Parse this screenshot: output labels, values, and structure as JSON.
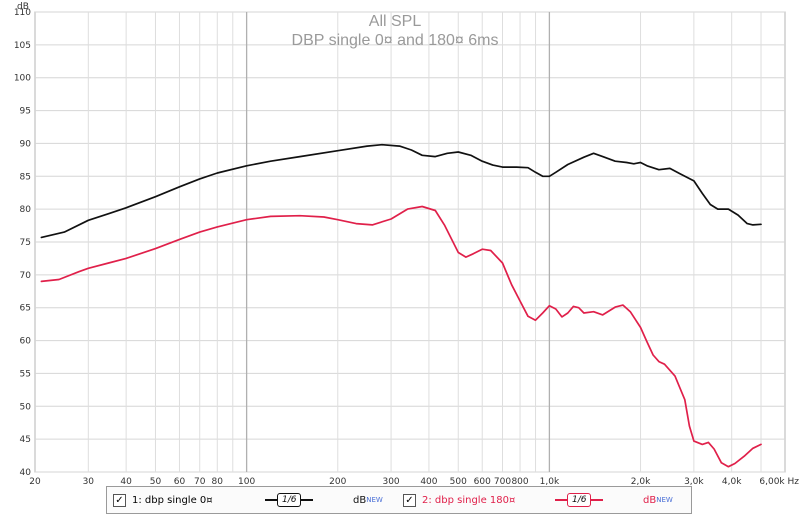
{
  "chart_data": {
    "type": "line",
    "title": "All SPL",
    "subtitle": "DBP single 0¤ and 180¤ 6ms",
    "ylabel": "dB",
    "xlabel": "",
    "x_scale": "log",
    "xlim": [
      20,
      6000
    ],
    "ylim": [
      40,
      110
    ],
    "y_ticks": [
      "40",
      "45",
      "50",
      "55",
      "60",
      "65",
      "70",
      "75",
      "80",
      "85",
      "90",
      "95",
      "100",
      "105",
      "110"
    ],
    "x_ticks": [
      {
        "v": 20,
        "l": "20"
      },
      {
        "v": 30,
        "l": "30"
      },
      {
        "v": 40,
        "l": "40"
      },
      {
        "v": 50,
        "l": "50"
      },
      {
        "v": 60,
        "l": "60"
      },
      {
        "v": 70,
        "l": "70"
      },
      {
        "v": 80,
        "l": "80"
      },
      {
        "v": 100,
        "l": "100"
      },
      {
        "v": 200,
        "l": "200"
      },
      {
        "v": 300,
        "l": "300"
      },
      {
        "v": 400,
        "l": "400"
      },
      {
        "v": 500,
        "l": "500"
      },
      {
        "v": 600,
        "l": "600"
      },
      {
        "v": 700,
        "l": "700"
      },
      {
        "v": 800,
        "l": "800"
      },
      {
        "v": 1000,
        "l": "1,0k"
      },
      {
        "v": 2000,
        "l": "2,0k"
      },
      {
        "v": 3000,
        "l": "3,0k"
      },
      {
        "v": 4000,
        "l": "4,0k"
      },
      {
        "v": 6000,
        "l": "6,00k Hz"
      }
    ],
    "grid": true,
    "legend_position": "bottom",
    "series": [
      {
        "name": "1: dbp single 0¤",
        "color": "#111111",
        "points": [
          [
            21,
            75.7
          ],
          [
            25,
            76.5
          ],
          [
            30,
            78.3
          ],
          [
            35,
            79.3
          ],
          [
            40,
            80.2
          ],
          [
            50,
            81.9
          ],
          [
            60,
            83.4
          ],
          [
            70,
            84.6
          ],
          [
            80,
            85.5
          ],
          [
            100,
            86.6
          ],
          [
            120,
            87.3
          ],
          [
            150,
            88.0
          ],
          [
            200,
            88.9
          ],
          [
            250,
            89.6
          ],
          [
            280,
            89.8
          ],
          [
            320,
            89.6
          ],
          [
            350,
            89.0
          ],
          [
            380,
            88.2
          ],
          [
            420,
            88.0
          ],
          [
            460,
            88.5
          ],
          [
            500,
            88.7
          ],
          [
            550,
            88.2
          ],
          [
            600,
            87.3
          ],
          [
            650,
            86.7
          ],
          [
            700,
            86.4
          ],
          [
            780,
            86.4
          ],
          [
            850,
            86.3
          ],
          [
            900,
            85.6
          ],
          [
            950,
            85.0
          ],
          [
            1000,
            85.0
          ],
          [
            1050,
            85.6
          ],
          [
            1150,
            86.8
          ],
          [
            1300,
            87.9
          ],
          [
            1400,
            88.5
          ],
          [
            1500,
            88.0
          ],
          [
            1650,
            87.3
          ],
          [
            1800,
            87.1
          ],
          [
            1900,
            86.9
          ],
          [
            2000,
            87.1
          ],
          [
            2100,
            86.6
          ],
          [
            2300,
            86.0
          ],
          [
            2500,
            86.2
          ],
          [
            2700,
            85.4
          ],
          [
            3000,
            84.3
          ],
          [
            3200,
            82.4
          ],
          [
            3400,
            80.7
          ],
          [
            3600,
            80.0
          ],
          [
            3900,
            80.0
          ],
          [
            4200,
            79.1
          ],
          [
            4500,
            77.8
          ],
          [
            4700,
            77.6
          ],
          [
            5000,
            77.7
          ]
        ]
      },
      {
        "name": "2: dbp single 180¤",
        "color": "#e0204a",
        "points": [
          [
            21,
            69.0
          ],
          [
            24,
            69.3
          ],
          [
            28,
            70.5
          ],
          [
            30,
            71.0
          ],
          [
            35,
            71.8
          ],
          [
            40,
            72.5
          ],
          [
            50,
            74.0
          ],
          [
            60,
            75.4
          ],
          [
            70,
            76.5
          ],
          [
            80,
            77.3
          ],
          [
            100,
            78.4
          ],
          [
            120,
            78.9
          ],
          [
            150,
            79.0
          ],
          [
            180,
            78.8
          ],
          [
            200,
            78.4
          ],
          [
            230,
            77.8
          ],
          [
            260,
            77.6
          ],
          [
            300,
            78.5
          ],
          [
            340,
            80.0
          ],
          [
            380,
            80.4
          ],
          [
            420,
            79.8
          ],
          [
            450,
            77.6
          ],
          [
            500,
            73.4
          ],
          [
            530,
            72.7
          ],
          [
            560,
            73.2
          ],
          [
            600,
            73.9
          ],
          [
            640,
            73.7
          ],
          [
            700,
            71.8
          ],
          [
            750,
            68.5
          ],
          [
            800,
            66.0
          ],
          [
            850,
            63.7
          ],
          [
            900,
            63.1
          ],
          [
            950,
            64.2
          ],
          [
            1000,
            65.3
          ],
          [
            1050,
            64.8
          ],
          [
            1100,
            63.6
          ],
          [
            1150,
            64.2
          ],
          [
            1200,
            65.2
          ],
          [
            1250,
            65.0
          ],
          [
            1300,
            64.2
          ],
          [
            1400,
            64.4
          ],
          [
            1500,
            63.9
          ],
          [
            1650,
            65.1
          ],
          [
            1750,
            65.4
          ],
          [
            1850,
            64.4
          ],
          [
            2000,
            62.0
          ],
          [
            2100,
            59.8
          ],
          [
            2200,
            57.8
          ],
          [
            2300,
            56.8
          ],
          [
            2400,
            56.4
          ],
          [
            2600,
            54.6
          ],
          [
            2800,
            51.0
          ],
          [
            2900,
            47.0
          ],
          [
            3000,
            44.7
          ],
          [
            3200,
            44.2
          ],
          [
            3350,
            44.5
          ],
          [
            3500,
            43.5
          ],
          [
            3700,
            41.4
          ],
          [
            3900,
            40.8
          ],
          [
            4100,
            41.3
          ],
          [
            4400,
            42.4
          ],
          [
            4700,
            43.6
          ],
          [
            5000,
            44.2
          ]
        ]
      }
    ]
  },
  "legend": {
    "items": [
      {
        "label": "1: dbp single 0¤",
        "smoothing": "1/6",
        "unit": "dB",
        "badge": "NEW",
        "color": "#111111",
        "check": "✓"
      },
      {
        "label": "2: dbp single 180¤",
        "smoothing": "1/6",
        "unit": "dB",
        "badge": "NEW",
        "color": "#e0204a",
        "check": "✓"
      }
    ]
  }
}
